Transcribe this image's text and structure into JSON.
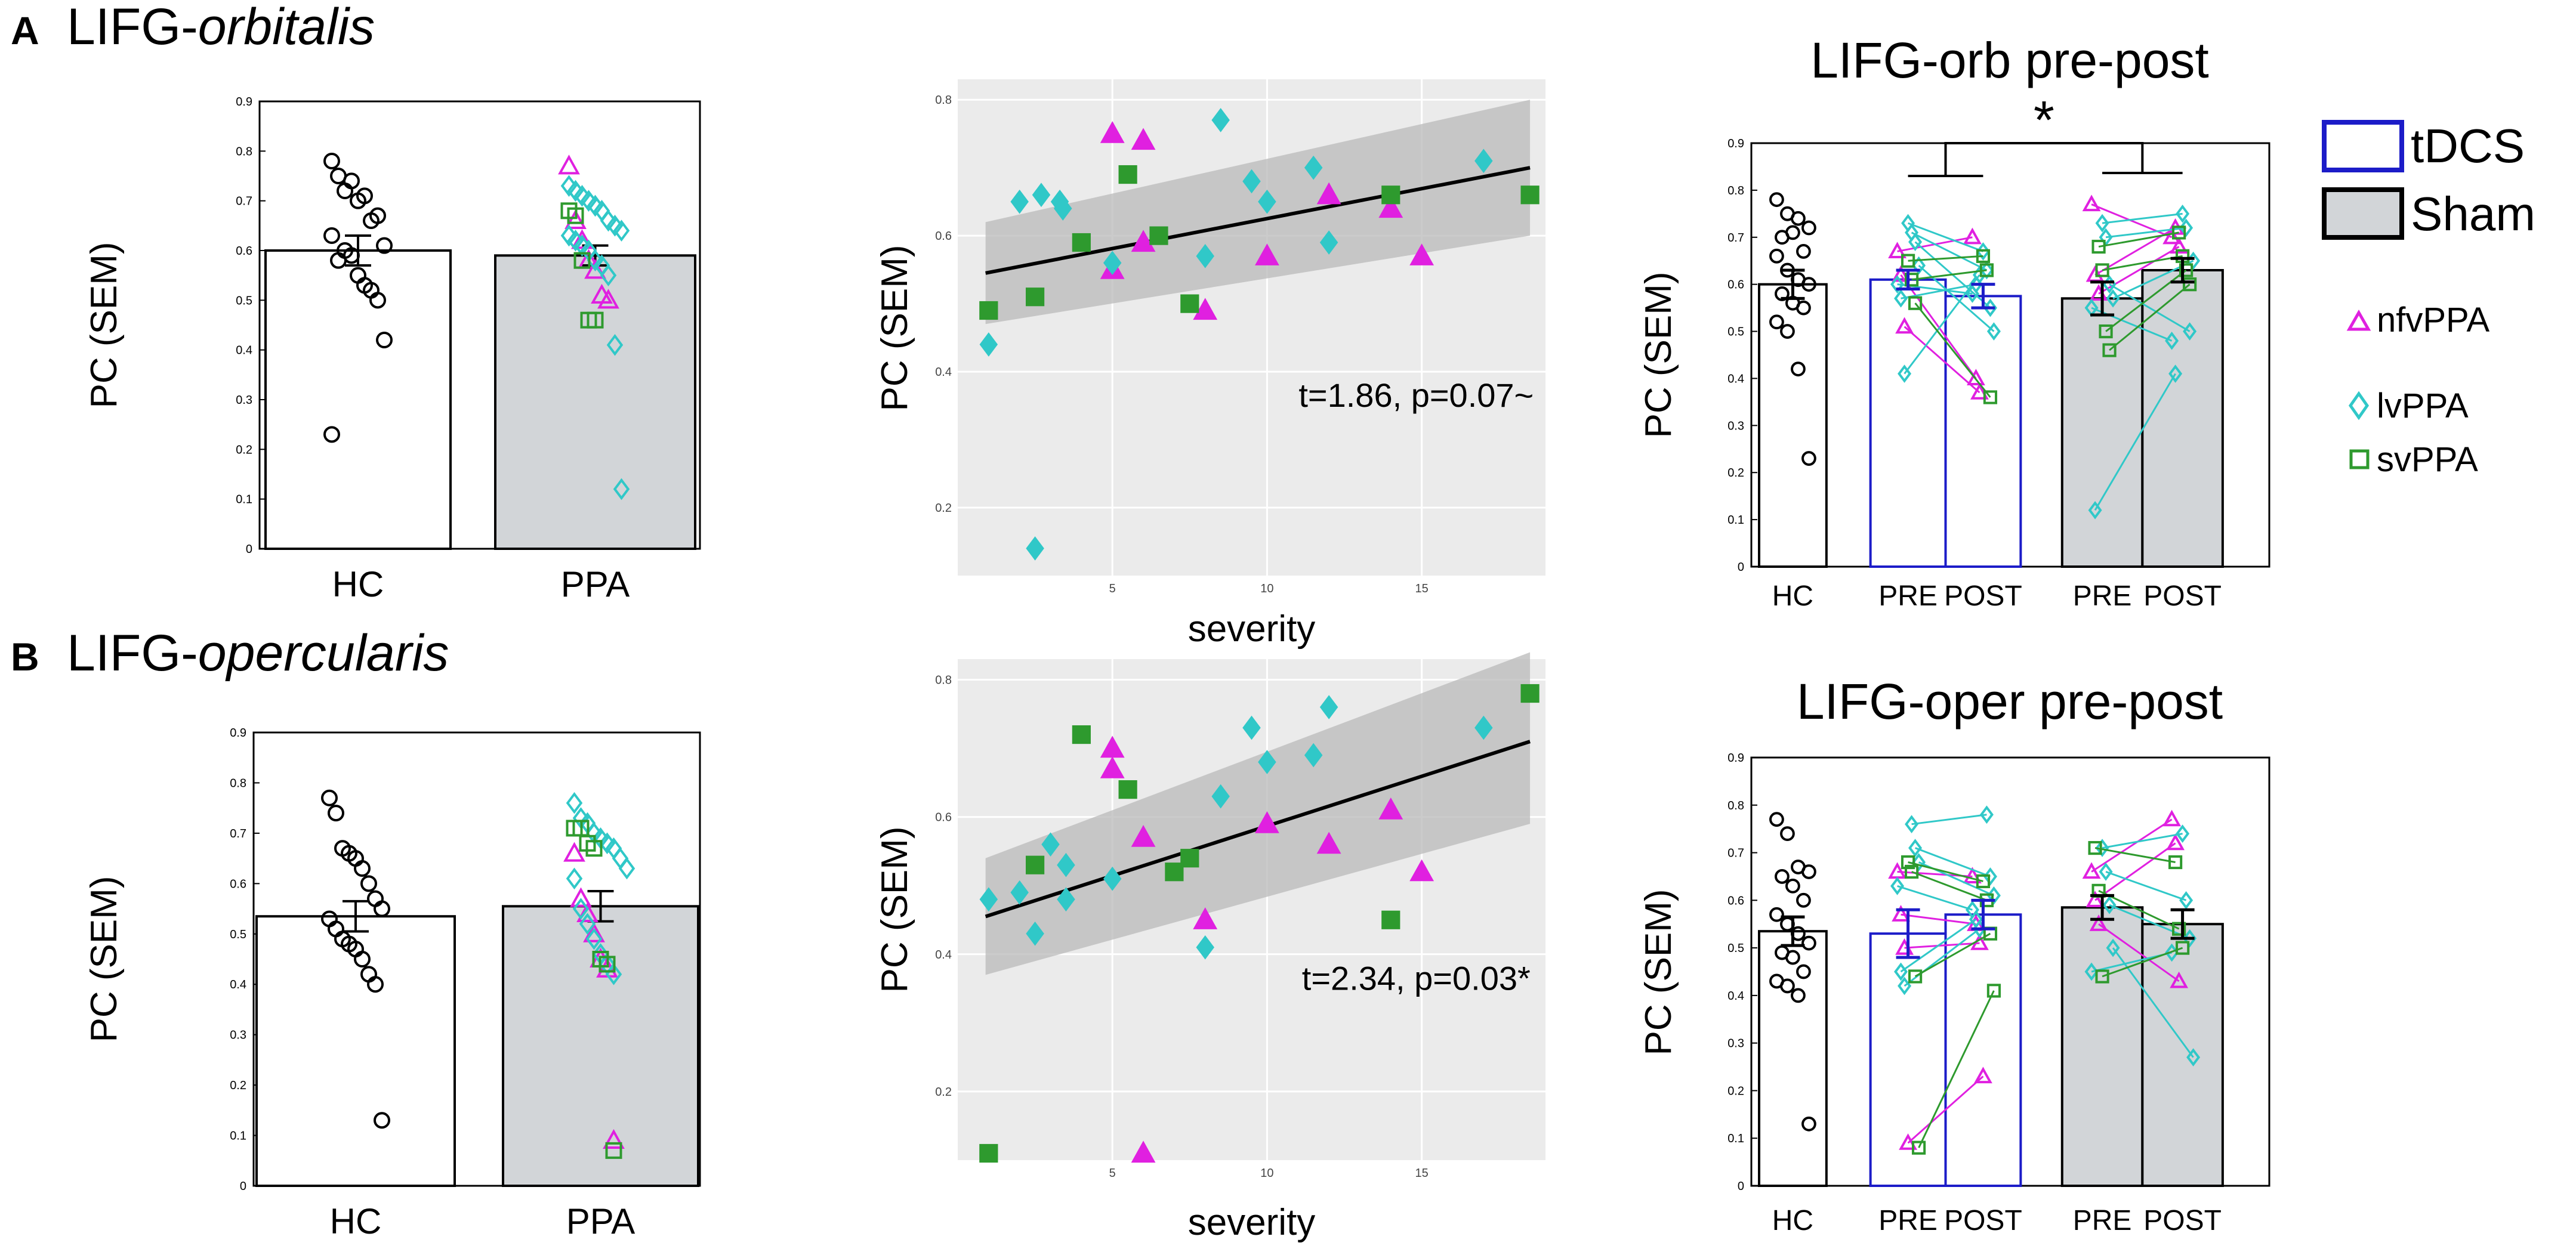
{
  "panel_labels": {
    "a": "A",
    "b": "B"
  },
  "row_titles": {
    "a_prefix": "LIFG-",
    "a_italic": "orbitalis",
    "b_prefix": "LIFG-",
    "b_italic": "opercularis"
  },
  "legend": {
    "tdcs": "tDCS",
    "sham": "Sham",
    "nfv": "nfvPPA",
    "lv": "lvPPA",
    "sv": "svPPA",
    "colors": {
      "tdcs": "#1c1cc8",
      "sham": "#d2d5d8",
      "nfv": "#e020e0",
      "lv": "#30c8c8",
      "sv": "#2e9a2e"
    }
  },
  "chart_data": [
    {
      "id": "a_bar",
      "type": "bar",
      "title": "",
      "ylabel": "PC (SEM)",
      "ylim": [
        0,
        0.9
      ],
      "yticks": [
        "0",
        "0.1",
        "0.2",
        "0.3",
        "0.4",
        "0.5",
        "0.6",
        "0.7",
        "0.8",
        "0.9"
      ],
      "categories": [
        "HC",
        "PPA"
      ],
      "values": [
        0.6,
        0.59
      ],
      "sem": [
        0.03,
        0.02
      ],
      "bar_colors": [
        "#ffffff",
        "#d2d5d8"
      ],
      "points": [
        {
          "group": "HC",
          "y": [
            0.78,
            0.75,
            0.72,
            0.74,
            0.7,
            0.71,
            0.66,
            0.67,
            0.61,
            0.63,
            0.58,
            0.6,
            0.59,
            0.55,
            0.53,
            0.52,
            0.5,
            0.42,
            0.23
          ]
        },
        {
          "group": "PPA",
          "marker": "nfv",
          "y": [
            0.77,
            0.66,
            0.62,
            0.58,
            0.56,
            0.51,
            0.5
          ]
        },
        {
          "group": "PPA",
          "marker": "lv",
          "y": [
            0.73,
            0.72,
            0.71,
            0.7,
            0.69,
            0.68,
            0.66,
            0.65,
            0.64,
            0.63,
            0.62,
            0.61,
            0.6,
            0.58,
            0.57,
            0.55,
            0.41,
            0.12
          ]
        },
        {
          "group": "PPA",
          "marker": "sv",
          "y": [
            0.68,
            0.67,
            0.58,
            0.46,
            0.46
          ]
        }
      ]
    },
    {
      "id": "a_scatter",
      "type": "scatter",
      "xlabel": "severity",
      "ylabel": "PC (SEM)",
      "xlim": [
        0,
        19
      ],
      "ylim": [
        0.1,
        0.83
      ],
      "xticks": [
        5,
        10,
        15
      ],
      "yticks": [
        0.2,
        0.4,
        0.6,
        0.8
      ],
      "annotation": "t=1.86, p=0.07~",
      "fit": {
        "x": [
          0.9,
          18.5
        ],
        "y": [
          0.545,
          0.7
        ],
        "ci_lo": [
          0.47,
          0.6
        ],
        "ci_hi": [
          0.62,
          0.8
        ]
      },
      "series": [
        {
          "name": "nfvPPA",
          "marker": "triangle",
          "points": [
            [
              5,
              0.75
            ],
            [
              6,
              0.74
            ],
            [
              6,
              0.59
            ],
            [
              5,
              0.55
            ],
            [
              8,
              0.49
            ],
            [
              10,
              0.57
            ],
            [
              12,
              0.66
            ],
            [
              14,
              0.64
            ],
            [
              15,
              0.57
            ]
          ]
        },
        {
          "name": "lvPPA",
          "marker": "diamond",
          "points": [
            [
              1,
              0.44
            ],
            [
              2,
              0.65
            ],
            [
              2.7,
              0.66
            ],
            [
              3.3,
              0.65
            ],
            [
              3.4,
              0.64
            ],
            [
              5,
              0.56
            ],
            [
              8,
              0.57
            ],
            [
              8.5,
              0.77
            ],
            [
              9.5,
              0.68
            ],
            [
              10,
              0.65
            ],
            [
              11.5,
              0.7
            ],
            [
              12,
              0.59
            ],
            [
              17,
              0.71
            ],
            [
              2.5,
              0.14
            ]
          ]
        },
        {
          "name": "svPPA",
          "marker": "square",
          "points": [
            [
              1,
              0.49
            ],
            [
              2.5,
              0.51
            ],
            [
              4,
              0.59
            ],
            [
              5.5,
              0.69
            ],
            [
              6.5,
              0.6
            ],
            [
              7.5,
              0.5
            ],
            [
              14,
              0.66
            ],
            [
              18.5,
              0.66
            ]
          ]
        }
      ]
    },
    {
      "id": "a_prepost",
      "type": "bar",
      "title": "LIFG-orb pre-post",
      "ylabel": "PC (SEM)",
      "ylim": [
        0,
        0.9
      ],
      "yticks": [
        "0",
        "0.1",
        "0.2",
        "0.3",
        "0.4",
        "0.5",
        "0.6",
        "0.7",
        "0.8",
        "0.9"
      ],
      "categories": [
        "HC",
        "PRE",
        "POST",
        "PRE",
        "POST"
      ],
      "values": [
        0.6,
        0.61,
        0.575,
        0.57,
        0.63
      ],
      "sem": [
        0.03,
        0.02,
        0.025,
        0.035,
        0.025
      ],
      "significance": "*",
      "hc_points": [
        0.78,
        0.75,
        0.74,
        0.72,
        0.7,
        0.71,
        0.67,
        0.66,
        0.63,
        0.61,
        0.6,
        0.58,
        0.56,
        0.55,
        0.52,
        0.5,
        0.42,
        0.23
      ],
      "pairs_tdcs": [
        {
          "m": "nfv",
          "pre": 0.67,
          "post": 0.7
        },
        {
          "m": "nfv",
          "pre": 0.62,
          "post": 0.4
        },
        {
          "m": "nfv",
          "pre": 0.51,
          "post": 0.37
        },
        {
          "m": "lv",
          "pre": 0.73,
          "post": 0.67
        },
        {
          "m": "lv",
          "pre": 0.71,
          "post": 0.63
        },
        {
          "m": "lv",
          "pre": 0.69,
          "post": 0.55
        },
        {
          "m": "lv",
          "pre": 0.64,
          "post": 0.5
        },
        {
          "m": "lv",
          "pre": 0.6,
          "post": 0.58
        },
        {
          "m": "lv",
          "pre": 0.57,
          "post": 0.6
        },
        {
          "m": "lv",
          "pre": 0.41,
          "post": 0.62
        },
        {
          "m": "sv",
          "pre": 0.65,
          "post": 0.66
        },
        {
          "m": "sv",
          "pre": 0.61,
          "post": 0.63
        },
        {
          "m": "sv",
          "pre": 0.56,
          "post": 0.36
        }
      ],
      "pairs_sham": [
        {
          "m": "nfv",
          "pre": 0.77,
          "post": 0.7
        },
        {
          "m": "nfv",
          "pre": 0.62,
          "post": 0.72
        },
        {
          "m": "nfv",
          "pre": 0.58,
          "post": 0.68
        },
        {
          "m": "lv",
          "pre": 0.73,
          "post": 0.75
        },
        {
          "m": "lv",
          "pre": 0.7,
          "post": 0.72
        },
        {
          "m": "lv",
          "pre": 0.6,
          "post": 0.5
        },
        {
          "m": "lv",
          "pre": 0.57,
          "post": 0.65
        },
        {
          "m": "lv",
          "pre": 0.55,
          "post": 0.48
        },
        {
          "m": "lv",
          "pre": 0.12,
          "post": 0.41
        },
        {
          "m": "sv",
          "pre": 0.68,
          "post": 0.71
        },
        {
          "m": "sv",
          "pre": 0.63,
          "post": 0.66
        },
        {
          "m": "sv",
          "pre": 0.5,
          "post": 0.63
        },
        {
          "m": "sv",
          "pre": 0.46,
          "post": 0.6
        }
      ]
    },
    {
      "id": "b_bar",
      "type": "bar",
      "title": "",
      "ylabel": "PC (SEM)",
      "ylim": [
        0,
        0.9
      ],
      "yticks": [
        "0",
        "0.1",
        "0.2",
        "0.3",
        "0.4",
        "0.5",
        "0.6",
        "0.7",
        "0.8",
        "0.9"
      ],
      "categories": [
        "HC",
        "PPA"
      ],
      "values": [
        0.535,
        0.555
      ],
      "sem": [
        0.03,
        0.03
      ],
      "bar_colors": [
        "#ffffff",
        "#d2d5d8"
      ],
      "points": [
        {
          "group": "HC",
          "y": [
            0.77,
            0.74,
            0.67,
            0.66,
            0.65,
            0.63,
            0.6,
            0.57,
            0.55,
            0.53,
            0.51,
            0.49,
            0.48,
            0.47,
            0.45,
            0.42,
            0.4,
            0.13
          ]
        },
        {
          "group": "PPA",
          "marker": "nfv",
          "y": [
            0.66,
            0.57,
            0.54,
            0.5,
            0.45,
            0.43,
            0.09
          ]
        },
        {
          "group": "PPA",
          "marker": "lv",
          "y": [
            0.76,
            0.73,
            0.72,
            0.7,
            0.69,
            0.68,
            0.67,
            0.65,
            0.63,
            0.61,
            0.55,
            0.52,
            0.49,
            0.46,
            0.44,
            0.42
          ]
        },
        {
          "group": "PPA",
          "marker": "sv",
          "y": [
            0.71,
            0.71,
            0.68,
            0.67,
            0.45,
            0.44,
            0.07
          ]
        }
      ]
    },
    {
      "id": "b_scatter",
      "type": "scatter",
      "xlabel": "severity",
      "ylabel": "PC (SEM)",
      "xlim": [
        0,
        19
      ],
      "ylim": [
        0.1,
        0.83
      ],
      "xticks": [
        5,
        10,
        15
      ],
      "yticks": [
        0.2,
        0.4,
        0.6,
        0.8
      ],
      "annotation": "t=2.34, p=0.03*",
      "fit": {
        "x": [
          0.9,
          18.5
        ],
        "y": [
          0.455,
          0.71
        ],
        "ci_lo": [
          0.37,
          0.59
        ],
        "ci_hi": [
          0.54,
          0.84
        ]
      },
      "series": [
        {
          "name": "nfvPPA",
          "marker": "triangle",
          "points": [
            [
              5,
              0.7
            ],
            [
              5,
              0.67
            ],
            [
              6,
              0.57
            ],
            [
              8,
              0.45
            ],
            [
              10,
              0.59
            ],
            [
              12,
              0.56
            ],
            [
              14,
              0.61
            ],
            [
              15,
              0.52
            ],
            [
              6,
              0.11
            ]
          ]
        },
        {
          "name": "lvPPA",
          "marker": "diamond",
          "points": [
            [
              1,
              0.48
            ],
            [
              2,
              0.49
            ],
            [
              2.5,
              0.43
            ],
            [
              3,
              0.56
            ],
            [
              3.5,
              0.53
            ],
            [
              3.5,
              0.48
            ],
            [
              5,
              0.51
            ],
            [
              8,
              0.41
            ],
            [
              8.5,
              0.63
            ],
            [
              9.5,
              0.73
            ],
            [
              10,
              0.68
            ],
            [
              11.5,
              0.69
            ],
            [
              12,
              0.76
            ],
            [
              17,
              0.73
            ]
          ]
        },
        {
          "name": "svPPA",
          "marker": "square",
          "points": [
            [
              1,
              0.11
            ],
            [
              2.5,
              0.53
            ],
            [
              4,
              0.72
            ],
            [
              5.5,
              0.64
            ],
            [
              7,
              0.52
            ],
            [
              7.5,
              0.54
            ],
            [
              14,
              0.45
            ],
            [
              18.5,
              0.78
            ]
          ]
        }
      ]
    },
    {
      "id": "b_prepost",
      "type": "bar",
      "title": "LIFG-oper pre-post",
      "ylabel": "PC (SEM)",
      "ylim": [
        0,
        0.9
      ],
      "yticks": [
        "0",
        "0.1",
        "0.2",
        "0.3",
        "0.4",
        "0.5",
        "0.6",
        "0.7",
        "0.8",
        "0.9"
      ],
      "categories": [
        "HC",
        "PRE",
        "POST",
        "PRE",
        "POST"
      ],
      "values": [
        0.535,
        0.53,
        0.57,
        0.585,
        0.55
      ],
      "sem": [
        0.03,
        0.05,
        0.03,
        0.025,
        0.03
      ],
      "significance": "",
      "hc_points": [
        0.77,
        0.74,
        0.67,
        0.66,
        0.65,
        0.63,
        0.6,
        0.57,
        0.55,
        0.53,
        0.51,
        0.49,
        0.48,
        0.45,
        0.43,
        0.42,
        0.4,
        0.13
      ],
      "pairs_tdcs": [
        {
          "m": "nfv",
          "pre": 0.66,
          "post": 0.65
        },
        {
          "m": "nfv",
          "pre": 0.57,
          "post": 0.55
        },
        {
          "m": "nfv",
          "pre": 0.5,
          "post": 0.51
        },
        {
          "m": "nfv",
          "pre": 0.09,
          "post": 0.23
        },
        {
          "m": "lv",
          "pre": 0.76,
          "post": 0.78
        },
        {
          "m": "lv",
          "pre": 0.71,
          "post": 0.65
        },
        {
          "m": "lv",
          "pre": 0.68,
          "post": 0.61
        },
        {
          "m": "lv",
          "pre": 0.63,
          "post": 0.58
        },
        {
          "m": "lv",
          "pre": 0.45,
          "post": 0.56
        },
        {
          "m": "lv",
          "pre": 0.42,
          "post": 0.54
        },
        {
          "m": "sv",
          "pre": 0.68,
          "post": 0.64
        },
        {
          "m": "sv",
          "pre": 0.66,
          "post": 0.6
        },
        {
          "m": "sv",
          "pre": 0.44,
          "post": 0.53
        },
        {
          "m": "sv",
          "pre": 0.08,
          "post": 0.41
        }
      ],
      "pairs_sham": [
        {
          "m": "nfv",
          "pre": 0.66,
          "post": 0.77
        },
        {
          "m": "nfv",
          "pre": 0.6,
          "post": 0.72
        },
        {
          "m": "nfv",
          "pre": 0.55,
          "post": 0.43
        },
        {
          "m": "lv",
          "pre": 0.71,
          "post": 0.74
        },
        {
          "m": "lv",
          "pre": 0.66,
          "post": 0.6
        },
        {
          "m": "lv",
          "pre": 0.59,
          "post": 0.52
        },
        {
          "m": "lv",
          "pre": 0.5,
          "post": 0.27
        },
        {
          "m": "lv",
          "pre": 0.45,
          "post": 0.49
        },
        {
          "m": "sv",
          "pre": 0.71,
          "post": 0.68
        },
        {
          "m": "sv",
          "pre": 0.62,
          "post": 0.54
        },
        {
          "m": "sv",
          "pre": 0.44,
          "post": 0.5
        }
      ]
    }
  ]
}
